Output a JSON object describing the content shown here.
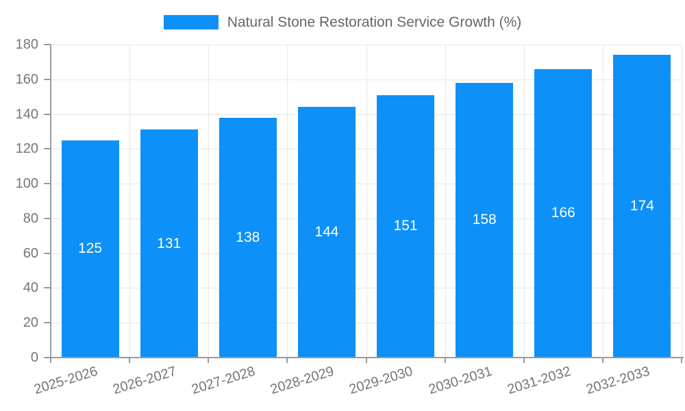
{
  "legend": {
    "label": "Natural Stone Restoration Service Growth (%)"
  },
  "chart_data": {
    "type": "bar",
    "title": "Natural Stone Restoration Service Growth (%)",
    "series_name": "Natural Stone Restoration Service Growth (%)",
    "categories": [
      "2025-2026",
      "2026-2027",
      "2027-2028",
      "2028-2029",
      "2029-2030",
      "2030-2031",
      "2031-2032",
      "2032-2033"
    ],
    "values": [
      125,
      131,
      138,
      144,
      151,
      158,
      166,
      174
    ],
    "value_labels_shown": [
      125,
      131,
      138,
      144,
      151,
      158,
      166,
      174
    ],
    "xlabel": "",
    "ylabel": "",
    "ylim": [
      0,
      180
    ],
    "ytick_step": 20,
    "yticks": [
      0,
      20,
      40,
      60,
      80,
      100,
      120,
      140,
      160,
      180
    ],
    "grid": true,
    "legend_position": "top",
    "value_label_position": "inside-center",
    "xlabel_rotation_deg": -17
  },
  "colors": {
    "bar": "#0d90f8",
    "grid": "#e6e6e6",
    "axis": "#9a9a9a",
    "tick_label": "#757575",
    "legend_label": "#666666",
    "value_label": "#ffffff",
    "background": "#ffffff"
  }
}
